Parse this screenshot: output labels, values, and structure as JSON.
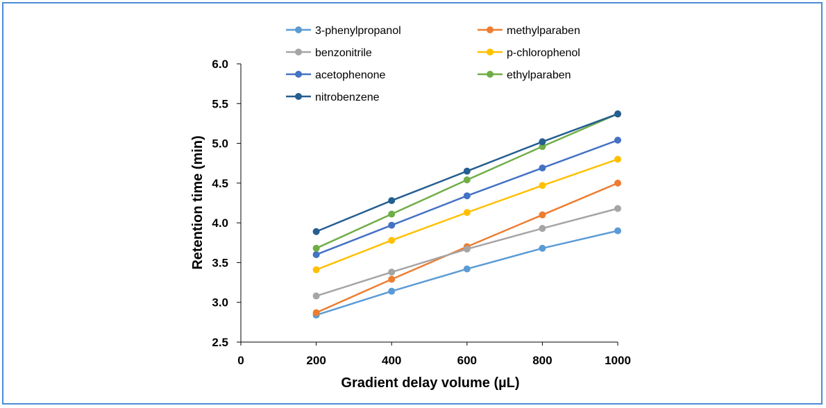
{
  "chart_data": {
    "type": "line",
    "title": "",
    "xlabel": "Gradient delay volume (µL)",
    "ylabel": "Retention time (min)",
    "xlim": [
      0,
      1000
    ],
    "ylim": [
      2.5,
      6.0
    ],
    "xticks": [
      0,
      200,
      400,
      600,
      800,
      1000
    ],
    "yticks": [
      "2.5",
      "3.0",
      "3.5",
      "4.0",
      "4.5",
      "5.0",
      "5.5",
      "6.0"
    ],
    "x": [
      200,
      400,
      600,
      800,
      1000
    ],
    "grid": false,
    "legend_position": "top",
    "series": [
      {
        "name": "3-phenylpropanol",
        "color": "#5b9bd5",
        "values": [
          2.84,
          3.14,
          3.42,
          3.68,
          3.9
        ]
      },
      {
        "name": "methylparaben",
        "color": "#ed7d31",
        "values": [
          2.87,
          3.29,
          3.7,
          4.1,
          4.5
        ]
      },
      {
        "name": "benzonitrile",
        "color": "#a5a5a5",
        "values": [
          3.08,
          3.38,
          3.67,
          3.93,
          4.18
        ]
      },
      {
        "name": "p-chlorophenol",
        "color": "#ffc000",
        "values": [
          3.41,
          3.78,
          4.13,
          4.47,
          4.8
        ]
      },
      {
        "name": "acetophenone",
        "color": "#4472c4",
        "values": [
          3.6,
          3.97,
          4.34,
          4.69,
          5.04
        ]
      },
      {
        "name": "ethylparaben",
        "color": "#70ad47",
        "values": [
          3.68,
          4.11,
          4.54,
          4.96,
          5.37
        ]
      },
      {
        "name": "nitrobenzene",
        "color": "#255e91",
        "values": [
          3.89,
          4.28,
          4.65,
          5.02,
          5.37
        ]
      }
    ]
  }
}
